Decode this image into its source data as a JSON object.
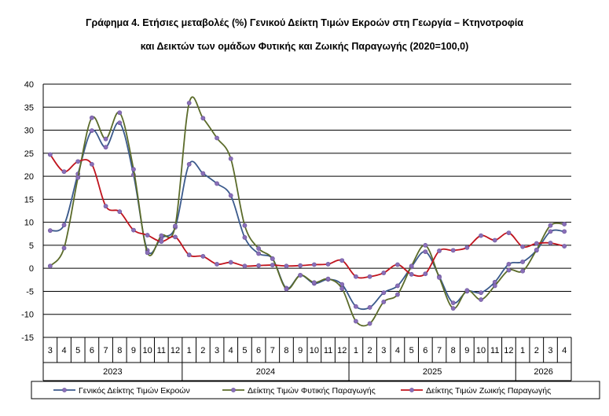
{
  "title_line1": "Γράφημα 4. Ετήσιες μεταβολές (%) Γενικού Δείκτη Τιμών Εκροών στη Γεωργία – Κτηνοτροφία",
  "title_line2": "και Δεικτών των ομάδων Φυτικής και Ζωικής Παραγωγής (2020=100,0)",
  "chart_data": {
    "type": "line",
    "ylim": [
      -15,
      40
    ],
    "yticks": [
      -15,
      -10,
      -5,
      0,
      5,
      10,
      15,
      20,
      25,
      30,
      35,
      40
    ],
    "categories": [
      "3",
      "4",
      "5",
      "6",
      "7",
      "8",
      "9",
      "10",
      "11",
      "12",
      "1",
      "2",
      "3",
      "4",
      "5",
      "6",
      "7",
      "8",
      "9",
      "10",
      "11",
      "12",
      "1",
      "2",
      "3",
      "4",
      "5",
      "6",
      "7",
      "8",
      "9",
      "10",
      "11",
      "12",
      "1",
      "2",
      "3",
      "4"
    ],
    "years": [
      {
        "label": "2023",
        "start": 0,
        "end": 9
      },
      {
        "label": "2024",
        "start": 10,
        "end": 21
      },
      {
        "label": "2025",
        "start": 22,
        "end": 33
      },
      {
        "label": "2026",
        "start": 34,
        "end": 37
      }
    ],
    "grid": "horizontal",
    "legend_position": "bottom",
    "series": [
      {
        "name": "Γενικός Δείκτης Τιμών Εκροών",
        "color": "#3b5a8c",
        "values": [
          8.2,
          9.4,
          20.5,
          29.9,
          26.3,
          31.6,
          20.3,
          3.9,
          6.6,
          8.9,
          22.6,
          20.6,
          18.4,
          15.8,
          6.7,
          3.2,
          2.1,
          -4.3,
          -1.5,
          -3.3,
          -2.4,
          -3.5,
          -8.3,
          -8.5,
          -5.3,
          -3.8,
          0.3,
          3.6,
          -1.8,
          -7.5,
          -5.0,
          -5.3,
          -3.0,
          0.9,
          1.4,
          3.9,
          8.0,
          8.0
        ]
      },
      {
        "name": "Δείκτης Τιμών Φυτικής Παραγωγής",
        "color": "#5b6b2a",
        "values": [
          0.5,
          4.4,
          19.7,
          32.7,
          28.1,
          33.8,
          21.5,
          3.4,
          7.1,
          9.2,
          35.9,
          32.6,
          28.3,
          23.8,
          9.3,
          4.3,
          2.1,
          -4.5,
          -1.5,
          -3.1,
          -2.3,
          -4.4,
          -11.5,
          -12.0,
          -7.3,
          -5.7,
          0.5,
          5.0,
          -2.0,
          -8.7,
          -4.8,
          -6.8,
          -3.8,
          -0.4,
          -0.6,
          4.0,
          9.3,
          9.6
        ]
      },
      {
        "name": "Δείκτης Τιμών Ζωικής Παραγωγής",
        "color": "#c0141e",
        "values": [
          24.7,
          21.0,
          23.2,
          22.6,
          13.5,
          12.3,
          8.3,
          7.2,
          5.8,
          6.8,
          2.9,
          2.6,
          0.9,
          1.3,
          0.5,
          0.6,
          0.7,
          0.5,
          0.6,
          0.8,
          0.9,
          1.7,
          -1.8,
          -1.8,
          -1.0,
          0.8,
          -1.3,
          -1.2,
          3.8,
          3.9,
          4.5,
          7.1,
          6.1,
          7.7,
          4.7,
          5.4,
          5.5,
          4.8
        ]
      }
    ]
  }
}
